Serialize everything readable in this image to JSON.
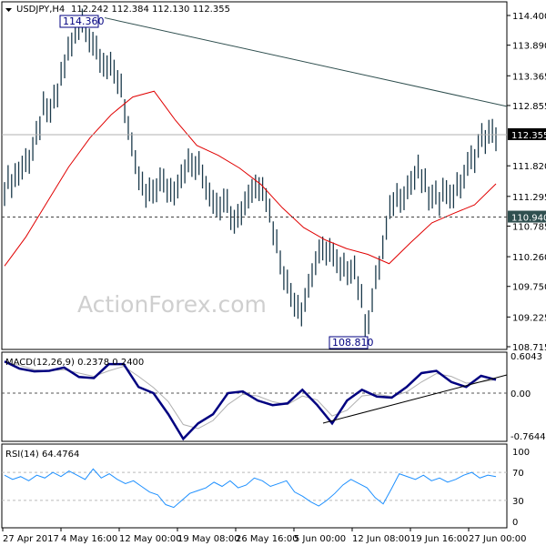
{
  "header": {
    "symbol": "USDJPY,H4",
    "ohlc": "112.242 112.384 112.130 112.355"
  },
  "watermark": "ActionForex.com",
  "colors": {
    "bars": "#1b3a4b",
    "ma": "#e00000",
    "trendline": "#2f4f4f",
    "macd": "#000080",
    "signal": "#b0b0b0",
    "rsi": "#1e90ff",
    "current_price_bg": "#000000",
    "level_bg": "#2f4f4f"
  },
  "chart_data": [
    {
      "type": "line",
      "title": "USDJPY,H4",
      "yticks": [
        "114.400",
        "113.890",
        "113.365",
        "112.855",
        "111.820",
        "111.295",
        "110.785",
        "110.260",
        "109.750",
        "109.225",
        "108.715"
      ],
      "ylim": [
        108.715,
        114.4
      ],
      "xticks": [
        "27 Apr 2017",
        "4 May 16:00",
        "12 May 00:00",
        "19 May 08:00",
        "26 May 16:00",
        "5 Jun 00:00",
        "12 Jun 08:00",
        "19 Jun 16:00",
        "27 Jun 00:00"
      ],
      "close": [
        111.46,
        111.7,
        112.0,
        112.8,
        112.95,
        113.88,
        114.28,
        113.88,
        113.5,
        113.26,
        111.85,
        111.23,
        111.54,
        111.39,
        111.85,
        111.78,
        111.3,
        111.15,
        110.92,
        111.39,
        111.54,
        110.53,
        109.67,
        109.35,
        110.14,
        110.45,
        109.98,
        110.14,
        109.04,
        110.14,
        111.23,
        111.39,
        111.7,
        111.23,
        111.3,
        111.39,
        111.85,
        112.32,
        112.36
      ],
      "moving_average": [
        110.1,
        110.6,
        111.2,
        111.8,
        112.3,
        112.7,
        113.0,
        113.1,
        112.6,
        112.17,
        112.0,
        111.78,
        111.5,
        111.1,
        110.76,
        110.55,
        110.4,
        110.3,
        110.14,
        110.5,
        110.84,
        111.0,
        111.15,
        111.51
      ],
      "trendline": [
        114.36,
        112.84
      ],
      "annotations": {
        "high": "114.360",
        "low": "108.810",
        "current_price": "112.355",
        "level": "110.940"
      },
      "grid": false
    },
    {
      "type": "line",
      "title": "MACD(12,26,9) 0.2378 0.2400",
      "yticks": [
        "0.6043",
        "0.00",
        "-0.7644"
      ],
      "ylim": [
        -0.7644,
        0.6043
      ],
      "series": [
        {
          "name": "MACD",
          "values": [
            0.57,
            0.44,
            0.39,
            0.4,
            0.46,
            0.29,
            0.27,
            0.52,
            0.52,
            0.11,
            0.0,
            -0.37,
            -0.8,
            -0.53,
            -0.37,
            0.0,
            0.03,
            -0.13,
            -0.21,
            -0.18,
            0.06,
            -0.21,
            -0.53,
            -0.13,
            0.06,
            -0.06,
            -0.08,
            0.11,
            0.36,
            0.4,
            0.2,
            0.11,
            0.31,
            0.24
          ]
        },
        {
          "name": "Signal",
          "values": [
            0.55,
            0.5,
            0.42,
            0.4,
            0.42,
            0.36,
            0.3,
            0.4,
            0.48,
            0.3,
            0.1,
            -0.15,
            -0.55,
            -0.62,
            -0.48,
            -0.2,
            -0.02,
            -0.05,
            -0.15,
            -0.2,
            -0.05,
            -0.12,
            -0.4,
            -0.3,
            -0.05,
            -0.02,
            -0.06,
            0.02,
            0.2,
            0.35,
            0.3,
            0.18,
            0.2,
            0.24
          ]
        }
      ]
    },
    {
      "type": "line",
      "title": "RSI(14) 64.4764",
      "yticks": [
        "100",
        "70",
        "30",
        "0"
      ],
      "ylim": [
        0,
        100
      ],
      "levels": [
        70,
        30
      ],
      "values": [
        66,
        60,
        64,
        58,
        66,
        62,
        70,
        64,
        72,
        66,
        60,
        75,
        62,
        68,
        60,
        54,
        58,
        50,
        42,
        38,
        24,
        20,
        30,
        40,
        44,
        48,
        56,
        50,
        58,
        48,
        52,
        62,
        58,
        50,
        54,
        58,
        42,
        36,
        28,
        22,
        30,
        40,
        52,
        60,
        54,
        48,
        34,
        25,
        46,
        68,
        64,
        60,
        66,
        58,
        62,
        56,
        60,
        66,
        70,
        62,
        66,
        64
      ]
    }
  ]
}
